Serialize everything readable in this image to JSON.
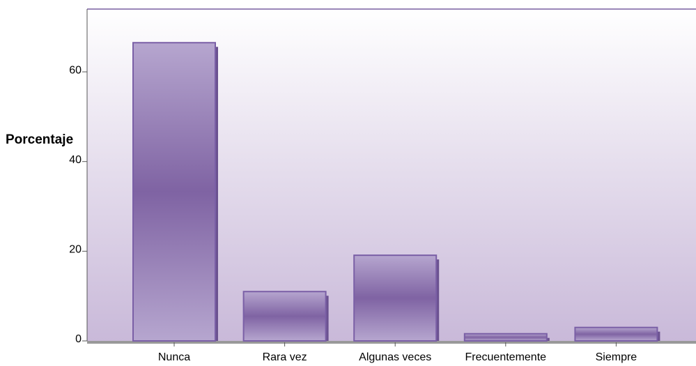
{
  "chart_data": {
    "type": "bar",
    "y_label": "Porcentaje",
    "categories": [
      "Nunca",
      "Rara vez",
      "Algunas veces",
      "Frecuentemente",
      "Siempre"
    ],
    "values": [
      66.5,
      11.0,
      19.1,
      1.6,
      3.0
    ],
    "color": "#7f63a3",
    "ylim": [
      0,
      74
    ],
    "yticks": [
      0,
      20,
      40,
      60
    ],
    "grid": false
  }
}
